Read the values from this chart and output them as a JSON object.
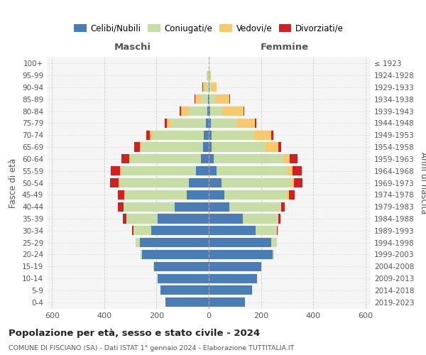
{
  "age_groups": [
    "0-4",
    "5-9",
    "10-14",
    "15-19",
    "20-24",
    "25-29",
    "30-34",
    "35-39",
    "40-44",
    "45-49",
    "50-54",
    "55-59",
    "60-64",
    "65-69",
    "70-74",
    "75-79",
    "80-84",
    "85-89",
    "90-94",
    "95-99",
    "100+"
  ],
  "birth_years": [
    "2019-2023",
    "2014-2018",
    "2009-2013",
    "2004-2008",
    "1999-2003",
    "1994-1998",
    "1989-1993",
    "1984-1988",
    "1979-1983",
    "1974-1978",
    "1969-1973",
    "1964-1968",
    "1959-1963",
    "1954-1958",
    "1949-1953",
    "1944-1948",
    "1939-1943",
    "1934-1938",
    "1929-1933",
    "1924-1928",
    "≤ 1923"
  ],
  "male": {
    "celibi": [
      165,
      185,
      195,
      210,
      255,
      265,
      220,
      195,
      130,
      85,
      75,
      50,
      30,
      22,
      18,
      10,
      5,
      3,
      1,
      1,
      0
    ],
    "coniugati": [
      0,
      0,
      0,
      2,
      5,
      15,
      68,
      120,
      195,
      235,
      265,
      285,
      270,
      235,
      195,
      135,
      72,
      28,
      12,
      4,
      0
    ],
    "vedovi": [
      0,
      0,
      0,
      0,
      0,
      1,
      1,
      1,
      2,
      3,
      4,
      5,
      5,
      8,
      12,
      15,
      30,
      20,
      10,
      4,
      0
    ],
    "divorziati": [
      0,
      0,
      0,
      0,
      1,
      0,
      5,
      12,
      20,
      25,
      35,
      35,
      30,
      20,
      15,
      8,
      5,
      3,
      1,
      0,
      0
    ]
  },
  "female": {
    "nubili": [
      140,
      165,
      185,
      200,
      245,
      240,
      180,
      130,
      80,
      60,
      50,
      30,
      20,
      12,
      10,
      8,
      5,
      4,
      2,
      1,
      0
    ],
    "coniugate": [
      0,
      0,
      0,
      2,
      5,
      20,
      80,
      135,
      195,
      240,
      265,
      275,
      265,
      205,
      165,
      100,
      48,
      20,
      8,
      2,
      0
    ],
    "vedove": [
      0,
      0,
      0,
      0,
      0,
      1,
      1,
      2,
      3,
      6,
      10,
      15,
      25,
      50,
      65,
      70,
      80,
      55,
      20,
      6,
      0
    ],
    "divorziate": [
      0,
      0,
      0,
      0,
      0,
      1,
      4,
      8,
      12,
      22,
      35,
      35,
      30,
      10,
      8,
      4,
      3,
      2,
      1,
      0,
      0
    ]
  },
  "colors": {
    "celibi": "#4a7db5",
    "coniugati": "#c8dca6",
    "vedovi": "#f5c96e",
    "divorziati": "#cc2222"
  },
  "xlim": 620,
  "title": "Popolazione per età, sesso e stato civile - 2024",
  "subtitle": "COMUNE DI FISCIANO (SA) - Dati ISTAT 1° gennaio 2024 - Elaborazione TUTTITALIA.IT",
  "xlabel_left": "Maschi",
  "xlabel_right": "Femmine",
  "ylabel_left": "Fasce di età",
  "ylabel_right": "Anni di nascita",
  "bg_color": "#f5f5f5",
  "grid_color": "#cccccc"
}
